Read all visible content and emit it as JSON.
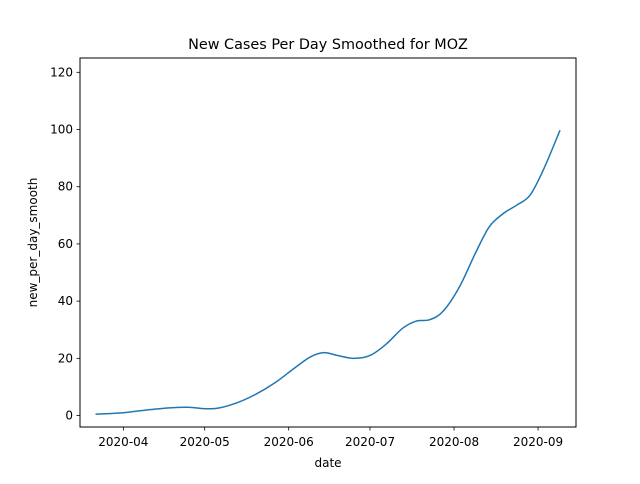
{
  "chart_data": {
    "type": "line",
    "title": "New Cases Per Day Smoothed for MOZ",
    "xlabel": "date",
    "ylabel": "new_per_day_smooth",
    "xlim": [
      "2020-03-16",
      "2020-09-15"
    ],
    "ylim": [
      -4,
      125
    ],
    "x_ticks": [
      "2020-04",
      "2020-05",
      "2020-06",
      "2020-07",
      "2020-08",
      "2020-09"
    ],
    "y_ticks": [
      0,
      20,
      40,
      60,
      80,
      100,
      120
    ],
    "grid": false,
    "series_color": "#1f77b4",
    "series": [
      {
        "x": [
          "2020-03-22",
          "2020-04-01",
          "2020-04-10",
          "2020-04-18",
          "2020-04-25",
          "2020-05-01",
          "2020-05-06",
          "2020-05-13",
          "2020-05-20",
          "2020-05-27",
          "2020-06-03",
          "2020-06-09",
          "2020-06-14",
          "2020-06-19",
          "2020-06-25",
          "2020-07-01",
          "2020-07-07",
          "2020-07-13",
          "2020-07-18",
          "2020-07-23",
          "2020-07-28",
          "2020-08-03",
          "2020-08-09",
          "2020-08-14",
          "2020-08-19",
          "2020-08-24",
          "2020-08-29",
          "2020-09-03",
          "2020-09-09"
        ],
        "y": [
          0.5,
          1.0,
          2.0,
          2.7,
          2.9,
          2.4,
          2.6,
          4.5,
          7.5,
          11.5,
          16.5,
          20.5,
          22.0,
          21.0,
          20.0,
          21.0,
          25.0,
          30.5,
          33.0,
          33.5,
          36.5,
          45.0,
          57.0,
          66.0,
          70.5,
          73.5,
          77.0,
          86.0,
          99.5
        ]
      }
    ]
  }
}
